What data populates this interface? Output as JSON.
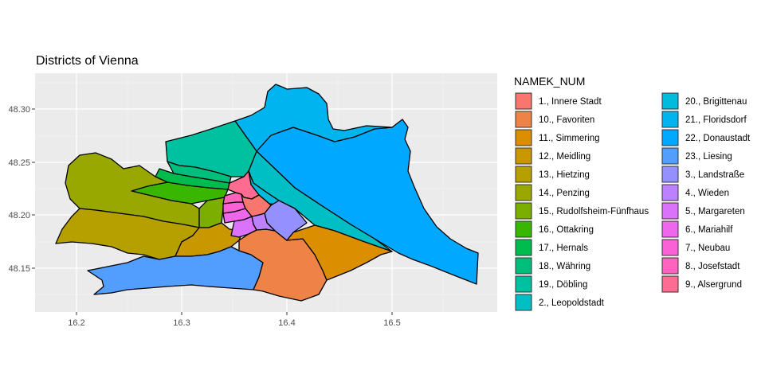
{
  "title": "Districts of Vienna",
  "legend_title": "NAMEK_NUM",
  "axes": {
    "x_ticks": [
      "16.2",
      "16.3",
      "16.4",
      "16.5"
    ],
    "y_ticks": [
      "48.30",
      "48.25",
      "48.20",
      "48.15"
    ],
    "x_range": [
      16.16,
      16.6
    ],
    "y_range": [
      48.12,
      48.33
    ],
    "background": "#ebebeb",
    "grid_color": "#ffffff"
  },
  "districts": [
    {
      "label": "1., Innere Stadt",
      "color": "#F8766D"
    },
    {
      "label": "10., Favoriten",
      "color": "#EF8347"
    },
    {
      "label": "11., Simmering",
      "color": "#DB8E00"
    },
    {
      "label": "12., Meidling",
      "color": "#C99800"
    },
    {
      "label": "13., Hietzing",
      "color": "#B5A000"
    },
    {
      "label": "14., Penzing",
      "color": "#98A800"
    },
    {
      "label": "15., Rudolfsheim-Fünfhaus",
      "color": "#7CAE00"
    },
    {
      "label": "16., Ottakring",
      "color": "#39B600"
    },
    {
      "label": "17., Hernals",
      "color": "#00BB4E"
    },
    {
      "label": "18., Währing",
      "color": "#00BF7D"
    },
    {
      "label": "19., Döbling",
      "color": "#00C19F"
    },
    {
      "label": "2., Leopoldstadt",
      "color": "#00BFC4"
    },
    {
      "label": "20., Brigittenau",
      "color": "#00BBDC"
    },
    {
      "label": "21., Floridsdorf",
      "color": "#00B4EF"
    },
    {
      "label": "22., Donaustadt",
      "color": "#00A9FF"
    },
    {
      "label": "23., Liesing",
      "color": "#529EFF"
    },
    {
      "label": "3., Landstraße",
      "color": "#9590FF"
    },
    {
      "label": "4., Wieden",
      "color": "#BC81FF"
    },
    {
      "label": "5., Margareten",
      "color": "#DB72FB"
    },
    {
      "label": "6., Mariahilf",
      "color": "#EF67EB"
    },
    {
      "label": "7., Neubau",
      "color": "#FB61D7"
    },
    {
      "label": "8., Josefstadt",
      "color": "#FF63BD"
    },
    {
      "label": "9., Alsergrund",
      "color": "#FF6C91"
    }
  ]
}
